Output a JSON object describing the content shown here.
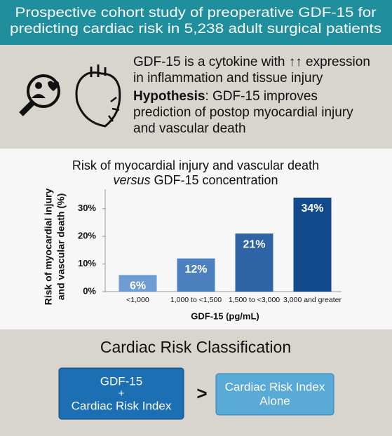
{
  "header": {
    "lines": [
      "Prospective cohort study of preoperative GDF-15 for",
      "predicting cardiac risk in 5,238 adult surgical patients"
    ]
  },
  "intro": {
    "lines": [
      "GDF-15 is a cytokine with ↑↑ expression",
      "in inflammation and tissue injury"
    ]
  },
  "hypothesis": {
    "label": "Hypothesis",
    "lines": [
      ": GDF-15 improves",
      "prediction of postop myocardial injury",
      "and vascular death"
    ]
  },
  "chart_data": {
    "type": "bar",
    "title": [
      "Risk of myocardial injury and vascular death",
      {
        "italic": "versus",
        "rest": " GDF-15 concentration"
      }
    ],
    "y_label": [
      "Risk of myocardial injury",
      "and vascular death (%)"
    ],
    "x_label": "GDF-15 (pg/mL)",
    "categories": [
      "<1,000",
      "1,000 to <1,500",
      "1,500 to <3,000",
      "3,000 and greater"
    ],
    "values": [
      6,
      12,
      21,
      34
    ],
    "value_labels": [
      "6%",
      "12%",
      "21%",
      "34%"
    ],
    "colors": [
      "#6f9cd2",
      "#4d80bf",
      "#2e64a6",
      "#124a8d"
    ],
    "ylim": [
      0,
      35
    ],
    "yticks": [
      {
        "value": 0,
        "label": "0%"
      },
      {
        "value": 10,
        "label": "10%"
      },
      {
        "value": 20,
        "label": "20%"
      },
      {
        "value": 30,
        "label": "30%"
      }
    ],
    "grid": false
  },
  "classification": {
    "title": "Cardiac Risk Classification",
    "left_box": [
      "GDF-15",
      "+",
      "Cardiac Risk Index"
    ],
    "comparator": ">",
    "right_box": [
      "Cardiac Risk Index",
      "Alone"
    ]
  }
}
